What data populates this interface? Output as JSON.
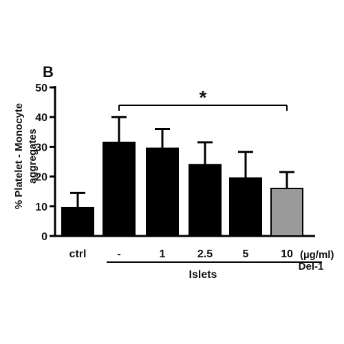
{
  "panel_label": "B",
  "chart_data": {
    "type": "bar",
    "categories": [
      "ctrl",
      "-",
      "1",
      "2.5",
      "5",
      "10"
    ],
    "values": [
      9.5,
      31.5,
      29.5,
      24,
      19.5,
      16
    ],
    "errors": [
      5,
      8.5,
      6.5,
      7.5,
      8.8,
      5.5
    ],
    "bar_colors": [
      "#000000",
      "#000000",
      "#000000",
      "#000000",
      "#000000",
      "#9a9a9a"
    ],
    "ylabel_lines": [
      "% Platelet - Monocyte",
      "aggregates"
    ],
    "ylim": [
      0,
      50
    ],
    "yticks": [
      0,
      10,
      20,
      30,
      40,
      50
    ],
    "unit_label": "(µg/ml)",
    "treatment_label": "Del-1",
    "group_label": "Islets",
    "significance": {
      "from": 1,
      "to": 5,
      "marker": "*"
    }
  }
}
